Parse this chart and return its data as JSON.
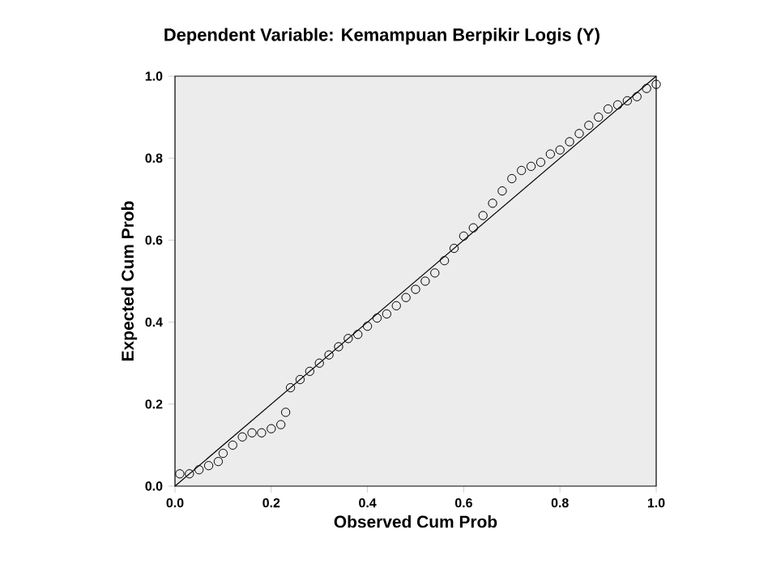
{
  "chart_data": {
    "type": "scatter",
    "title": "Dependent Variable: Kemampuan Berpikir Logis (Y)",
    "xlabel": "Observed Cum Prob",
    "ylabel": "Expected Cum Prob",
    "xlim": [
      0,
      1
    ],
    "ylim": [
      0,
      1
    ],
    "xticks": [
      {
        "value": 0,
        "label": "0.0"
      },
      {
        "value": 0.2,
        "label": "0.2"
      },
      {
        "value": 0.4,
        "label": "0.4"
      },
      {
        "value": 0.6,
        "label": "0.6"
      },
      {
        "value": 0.8,
        "label": "0.8"
      },
      {
        "value": 1,
        "label": "1.0"
      }
    ],
    "yticks": [
      {
        "value": 0,
        "label": "0.0"
      },
      {
        "value": 0.2,
        "label": "0.2"
      },
      {
        "value": 0.4,
        "label": "0.4"
      },
      {
        "value": 0.6,
        "label": "0.6"
      },
      {
        "value": 0.8,
        "label": "0.8"
      },
      {
        "value": 1,
        "label": "1.0"
      }
    ],
    "marker": "circle",
    "grid": false,
    "series": [
      {
        "color": "#000000",
        "x": [
          0.01,
          0.03,
          0.05,
          0.07,
          0.09,
          0.1,
          0.12,
          0.14,
          0.16,
          0.18,
          0.2,
          0.22,
          0.23,
          0.24,
          0.26,
          0.28,
          0.3,
          0.32,
          0.34,
          0.36,
          0.38,
          0.4,
          0.42,
          0.44,
          0.46,
          0.48,
          0.5,
          0.52,
          0.54,
          0.56,
          0.58,
          0.6,
          0.62,
          0.64,
          0.66,
          0.68,
          0.7,
          0.72,
          0.74,
          0.76,
          0.78,
          0.8,
          0.82,
          0.84,
          0.86,
          0.88,
          0.9,
          0.92,
          0.94,
          0.96,
          0.98,
          1.0
        ],
        "values": [
          0.03,
          0.03,
          0.04,
          0.05,
          0.06,
          0.08,
          0.1,
          0.12,
          0.13,
          0.13,
          0.14,
          0.15,
          0.18,
          0.24,
          0.26,
          0.28,
          0.3,
          0.32,
          0.34,
          0.36,
          0.37,
          0.39,
          0.41,
          0.42,
          0.44,
          0.46,
          0.48,
          0.5,
          0.52,
          0.55,
          0.58,
          0.61,
          0.63,
          0.66,
          0.69,
          0.72,
          0.75,
          0.77,
          0.78,
          0.79,
          0.81,
          0.82,
          0.84,
          0.86,
          0.88,
          0.9,
          0.92,
          0.93,
          0.94,
          0.95,
          0.97,
          0.98
        ]
      },
      {
        "type": "line",
        "marker": "none",
        "color": "#000000",
        "x": [
          0,
          1
        ],
        "values": [
          0,
          1
        ]
      }
    ]
  }
}
